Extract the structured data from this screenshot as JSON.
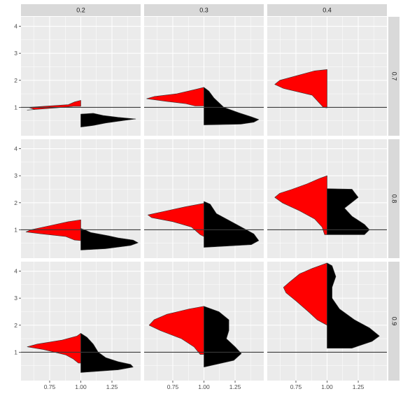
{
  "chart_data": {
    "type": "split-violin-facet",
    "title": "",
    "xlabel": "",
    "ylabel": "",
    "col_facets": [
      "0.2",
      "0.3",
      "0.4"
    ],
    "row_facets": [
      "0.7",
      "0.8",
      "0.9"
    ],
    "xlim": [
      0.52,
      1.48
    ],
    "ylim": [
      -0.05,
      4.35
    ],
    "x_ticks": [
      0.75,
      1.0,
      1.25
    ],
    "x_tick_labels": [
      "0.75",
      "1.00",
      "1.25"
    ],
    "y_ticks": [
      1,
      2,
      3,
      4
    ],
    "y_tick_labels": [
      "1",
      "2",
      "3",
      "4"
    ],
    "reference_line_y": 1,
    "split_center_x": 1.0,
    "left_fill": "#ff0000",
    "right_fill": "#000000",
    "panel_bg": "#ebebeb",
    "strip_bg": "#d9d9d9",
    "grid_color": "#ffffff",
    "panels": [
      {
        "row": 0,
        "col": 0,
        "left": [
          [
            1.26,
            0
          ],
          [
            1.2,
            0.05
          ],
          [
            1.1,
            0.1
          ],
          [
            1.0,
            0.42
          ],
          [
            0.92,
            0.37
          ],
          [
            0.9,
            0.43
          ],
          [
            0.98,
            0.2
          ],
          [
            1.02,
            0.1
          ],
          [
            1.04,
            0.06
          ]
        ],
        "right": [
          [
            0.75,
            0
          ],
          [
            0.78,
            0.1
          ],
          [
            0.7,
            0.18
          ],
          [
            0.63,
            0.3
          ],
          [
            0.57,
            0.44
          ],
          [
            0.53,
            0.37
          ],
          [
            0.42,
            0.2
          ],
          [
            0.33,
            0.1
          ],
          [
            0.27,
            0
          ]
        ]
      },
      {
        "row": 0,
        "col": 1,
        "left": [
          [
            1.74,
            0
          ],
          [
            1.65,
            0.08
          ],
          [
            1.5,
            0.22
          ],
          [
            1.4,
            0.4
          ],
          [
            1.32,
            0.46
          ],
          [
            1.22,
            0.3
          ],
          [
            1.14,
            0.15
          ],
          [
            1.05,
            0.07
          ]
        ],
        "right": [
          [
            1.74,
            0
          ],
          [
            1.6,
            0.04
          ],
          [
            1.35,
            0.08
          ],
          [
            1.0,
            0.16
          ],
          [
            0.8,
            0.28
          ],
          [
            0.65,
            0.38
          ],
          [
            0.55,
            0.44
          ],
          [
            0.45,
            0.4
          ],
          [
            0.38,
            0.3
          ],
          [
            0.35,
            0
          ]
        ]
      },
      {
        "row": 0,
        "col": 2,
        "left": [
          [
            2.4,
            0
          ],
          [
            2.35,
            0.1
          ],
          [
            2.2,
            0.22
          ],
          [
            2.0,
            0.38
          ],
          [
            1.85,
            0.42
          ],
          [
            1.7,
            0.35
          ],
          [
            1.45,
            0.12
          ],
          [
            1.2,
            0.07
          ],
          [
            1.0,
            0.03
          ],
          [
            0.98,
            0
          ]
        ]
      },
      {
        "row": 1,
        "col": 0,
        "left": [
          [
            1.37,
            0
          ],
          [
            1.3,
            0.1
          ],
          [
            1.15,
            0.25
          ],
          [
            1.0,
            0.4
          ],
          [
            0.92,
            0.44
          ],
          [
            0.85,
            0.32
          ],
          [
            0.75,
            0.12
          ],
          [
            0.62,
            0.05
          ],
          [
            0.6,
            0
          ]
        ],
        "right": [
          [
            1.05,
            0
          ],
          [
            0.98,
            0.04
          ],
          [
            0.9,
            0.08
          ],
          [
            0.78,
            0.22
          ],
          [
            0.7,
            0.3
          ],
          [
            0.62,
            0.42
          ],
          [
            0.52,
            0.46
          ],
          [
            0.42,
            0.4
          ],
          [
            0.3,
            0.2
          ],
          [
            0.25,
            0
          ]
        ]
      },
      {
        "row": 1,
        "col": 1,
        "left": [
          [
            1.98,
            0
          ],
          [
            1.85,
            0.15
          ],
          [
            1.7,
            0.3
          ],
          [
            1.55,
            0.45
          ],
          [
            1.45,
            0.42
          ],
          [
            1.3,
            0.25
          ],
          [
            1.1,
            0.1
          ],
          [
            0.82,
            0.03
          ],
          [
            0.75,
            0
          ]
        ],
        "right": [
          [
            2.05,
            0
          ],
          [
            1.95,
            0.05
          ],
          [
            1.6,
            0.1
          ],
          [
            1.35,
            0.2
          ],
          [
            1.1,
            0.3
          ],
          [
            0.85,
            0.4
          ],
          [
            0.6,
            0.44
          ],
          [
            0.45,
            0.38
          ],
          [
            0.35,
            0
          ]
        ]
      },
      {
        "row": 1,
        "col": 2,
        "left": [
          [
            3.0,
            0
          ],
          [
            2.9,
            0.06
          ],
          [
            2.7,
            0.16
          ],
          [
            2.5,
            0.28
          ],
          [
            2.35,
            0.38
          ],
          [
            2.2,
            0.42
          ],
          [
            2.0,
            0.36
          ],
          [
            1.7,
            0.22
          ],
          [
            1.4,
            0.1
          ],
          [
            1.1,
            0.04
          ],
          [
            0.82,
            0.02
          ]
        ],
        "right": [
          [
            2.52,
            0
          ],
          [
            2.5,
            0.2
          ],
          [
            2.2,
            0.25
          ],
          [
            1.8,
            0.14
          ],
          [
            1.5,
            0.2
          ],
          [
            1.2,
            0.3
          ],
          [
            1.0,
            0.34
          ],
          [
            0.82,
            0.3
          ],
          [
            0.82,
            0
          ]
        ]
      },
      {
        "row": 2,
        "col": 0,
        "left": [
          [
            1.7,
            0
          ],
          [
            1.6,
            0.03
          ],
          [
            1.45,
            0.15
          ],
          [
            1.3,
            0.35
          ],
          [
            1.2,
            0.43
          ],
          [
            1.1,
            0.3
          ],
          [
            0.9,
            0.12
          ],
          [
            0.75,
            0.06
          ],
          [
            0.6,
            0.02
          ]
        ],
        "right": [
          [
            1.7,
            0
          ],
          [
            1.55,
            0.05
          ],
          [
            1.3,
            0.1
          ],
          [
            1.0,
            0.14
          ],
          [
            0.8,
            0.2
          ],
          [
            0.65,
            0.3
          ],
          [
            0.55,
            0.4
          ],
          [
            0.45,
            0.42
          ],
          [
            0.35,
            0.3
          ],
          [
            0.25,
            0
          ]
        ]
      },
      {
        "row": 2,
        "col": 1,
        "left": [
          [
            2.7,
            0
          ],
          [
            2.6,
            0.12
          ],
          [
            2.4,
            0.3
          ],
          [
            2.2,
            0.4
          ],
          [
            2.0,
            0.44
          ],
          [
            1.8,
            0.35
          ],
          [
            1.5,
            0.18
          ],
          [
            1.2,
            0.08
          ],
          [
            0.92,
            0.03
          ]
        ],
        "right": [
          [
            2.7,
            0
          ],
          [
            2.5,
            0.12
          ],
          [
            2.2,
            0.2
          ],
          [
            1.8,
            0.2
          ],
          [
            1.5,
            0.18
          ],
          [
            1.2,
            0.25
          ],
          [
            0.95,
            0.3
          ],
          [
            0.7,
            0.24
          ],
          [
            0.45,
            0
          ]
        ]
      },
      {
        "row": 2,
        "col": 2,
        "left": [
          [
            4.3,
            0
          ],
          [
            4.1,
            0.12
          ],
          [
            3.9,
            0.22
          ],
          [
            3.6,
            0.3
          ],
          [
            3.4,
            0.35
          ],
          [
            3.2,
            0.33
          ],
          [
            2.9,
            0.25
          ],
          [
            2.5,
            0.15
          ],
          [
            2.2,
            0.08
          ],
          [
            2.0,
            0
          ]
        ],
        "right": [
          [
            4.3,
            0
          ],
          [
            4.2,
            0.04
          ],
          [
            3.8,
            0.07
          ],
          [
            3.4,
            0.04
          ],
          [
            3.0,
            0.04
          ],
          [
            2.6,
            0.1
          ],
          [
            2.2,
            0.22
          ],
          [
            1.9,
            0.34
          ],
          [
            1.6,
            0.42
          ],
          [
            1.4,
            0.36
          ],
          [
            1.15,
            0.2
          ],
          [
            1.15,
            0
          ]
        ]
      }
    ]
  }
}
